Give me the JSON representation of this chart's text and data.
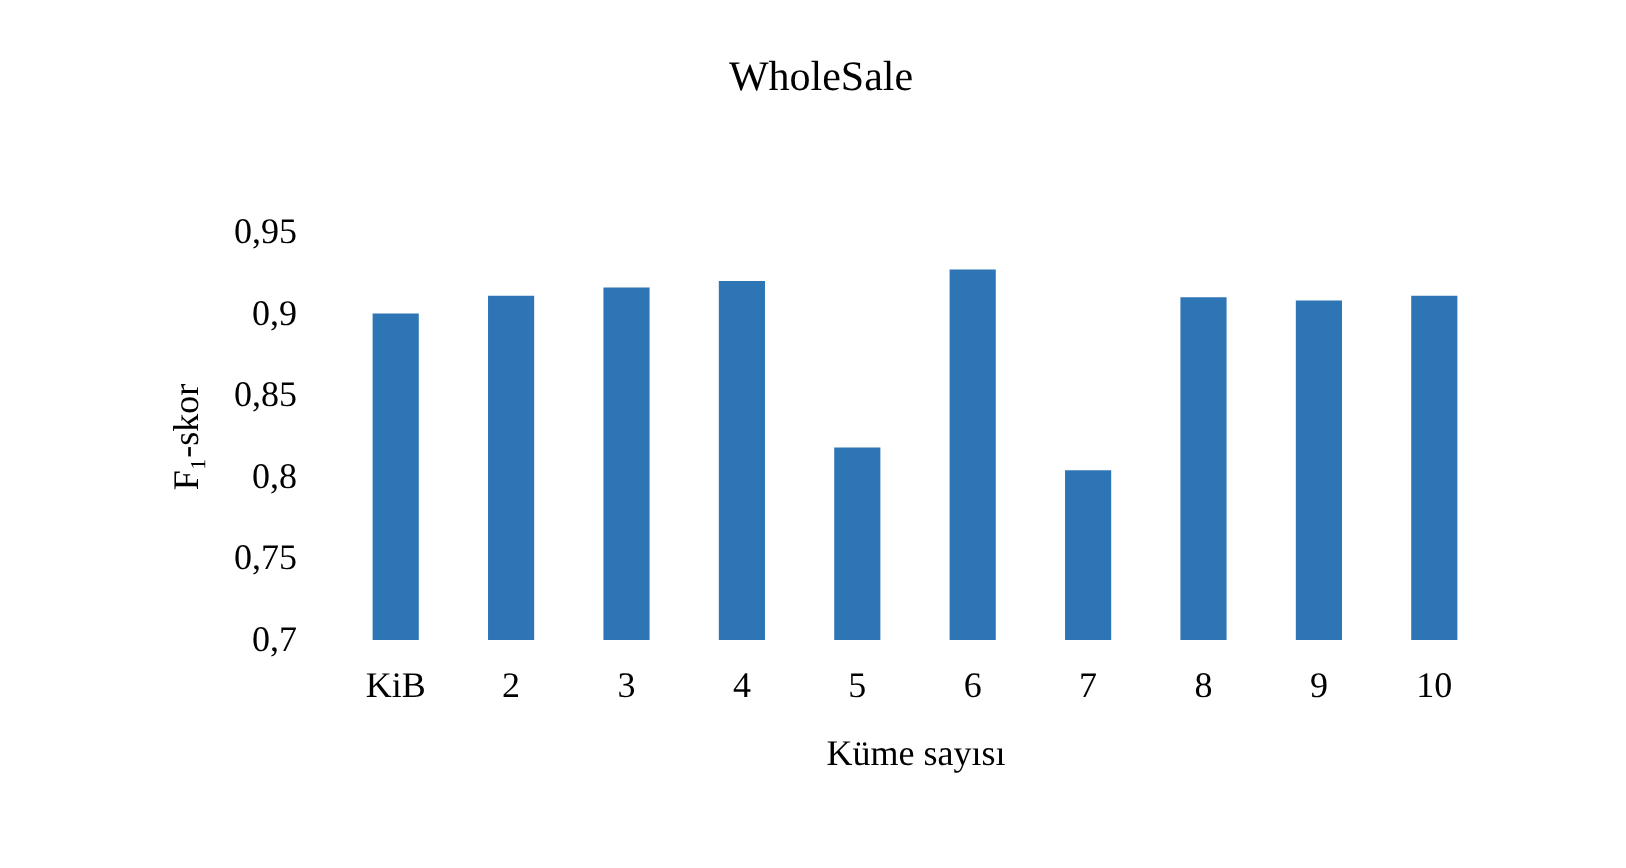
{
  "chart_data": {
    "type": "bar",
    "title": "WholeSale",
    "xlabel": "Küme sayısı",
    "ylabel": "F₁-skor",
    "categories": [
      "KiB",
      "2",
      "3",
      "4",
      "5",
      "6",
      "7",
      "8",
      "9",
      "10"
    ],
    "values": [
      0.9,
      0.911,
      0.916,
      0.92,
      0.818,
      0.927,
      0.804,
      0.91,
      0.908,
      0.911
    ],
    "color": "#2e75b6",
    "ylim": [
      0.7,
      0.95
    ],
    "yticks": [
      {
        "value": 0.7,
        "label": "0,7"
      },
      {
        "value": 0.75,
        "label": "0,75"
      },
      {
        "value": 0.8,
        "label": "0,8"
      },
      {
        "value": 0.85,
        "label": "0,85"
      },
      {
        "value": 0.9,
        "label": "0,9"
      },
      {
        "value": 0.95,
        "label": "0,95"
      }
    ]
  }
}
